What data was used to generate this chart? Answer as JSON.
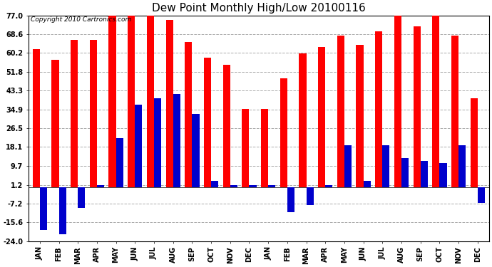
{
  "title": "Dew Point Monthly High/Low 20100116",
  "copyright": "Copyright 2010 Cartronics.com",
  "months": [
    "JAN",
    "FEB",
    "MAR",
    "APR",
    "MAY",
    "JUN",
    "JUL",
    "AUG",
    "SEP",
    "OCT",
    "NOV",
    "DEC",
    "JAN",
    "FEB",
    "MAR",
    "APR",
    "MAY",
    "JUN",
    "JUL",
    "AUG",
    "SEP",
    "OCT",
    "NOV",
    "DEC"
  ],
  "highs": [
    62,
    57,
    66,
    66,
    77,
    77,
    77,
    75,
    65,
    58,
    55,
    35,
    35,
    49,
    60,
    63,
    68,
    64,
    70,
    77,
    72,
    77,
    68,
    40
  ],
  "lows": [
    -19,
    -21,
    -9,
    1,
    22,
    37,
    40,
    42,
    33,
    3,
    1,
    1,
    1,
    -11,
    -8,
    1,
    19,
    3,
    19,
    13,
    12,
    11,
    19,
    -7
  ],
  "bar_width": 0.38,
  "high_color": "#FF0000",
  "low_color": "#0000CC",
  "yticks": [
    77.0,
    68.6,
    60.2,
    51.8,
    43.3,
    34.9,
    26.5,
    18.1,
    9.7,
    1.2,
    -7.2,
    -15.6,
    -24.0
  ],
  "ylim": [
    -24.0,
    77.0
  ],
  "background_color": "#FFFFFF",
  "grid_color": "#AAAAAA",
  "title_fontsize": 11,
  "copyright_fontsize": 6.5
}
